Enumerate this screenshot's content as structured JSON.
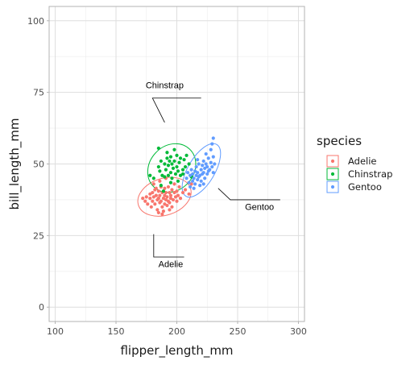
{
  "chart_data": {
    "type": "scatter",
    "xlabel": "flipper_length_mm",
    "ylabel": "bill_length_mm",
    "xlim": [
      95,
      305
    ],
    "ylim": [
      -5,
      105
    ],
    "xticks": [
      100,
      150,
      200,
      250,
      300
    ],
    "yticks": [
      0,
      25,
      50,
      75,
      100
    ],
    "grid": true,
    "legend": {
      "title": "species",
      "position": "right",
      "entries": [
        "Adelie",
        "Chinstrap",
        "Gentoo"
      ]
    },
    "colors": {
      "Adelie": "#F8766D",
      "Chinstrap": "#00BA38",
      "Gentoo": "#619CFF"
    },
    "series": [
      {
        "name": "Adelie",
        "points": [
          [
            172,
            38
          ],
          [
            174,
            37
          ],
          [
            175,
            38.5
          ],
          [
            176,
            36
          ],
          [
            178,
            38
          ],
          [
            178,
            39.5
          ],
          [
            179,
            35
          ],
          [
            180,
            37
          ],
          [
            180,
            40
          ],
          [
            181,
            38.5
          ],
          [
            182,
            36
          ],
          [
            182,
            41
          ],
          [
            183,
            39
          ],
          [
            184,
            37.5
          ],
          [
            184,
            34
          ],
          [
            185,
            38
          ],
          [
            185,
            40.5
          ],
          [
            186,
            36.5
          ],
          [
            186,
            39
          ],
          [
            187,
            42
          ],
          [
            187,
            37
          ],
          [
            188,
            35
          ],
          [
            188,
            40
          ],
          [
            189,
            38
          ],
          [
            189,
            33.5
          ],
          [
            190,
            39
          ],
          [
            190,
            36
          ],
          [
            190,
            41.5
          ],
          [
            191,
            37.5
          ],
          [
            191,
            40
          ],
          [
            192,
            35.5
          ],
          [
            192,
            38.5
          ],
          [
            193,
            42
          ],
          [
            193,
            37
          ],
          [
            194,
            40
          ],
          [
            194,
            36.5
          ],
          [
            195,
            39
          ],
          [
            195,
            38
          ],
          [
            196,
            41
          ],
          [
            196,
            35
          ],
          [
            197,
            37.5
          ],
          [
            198,
            40
          ],
          [
            198,
            43
          ],
          [
            199,
            38.5
          ],
          [
            200,
            37
          ],
          [
            200,
            40.5
          ],
          [
            201,
            39
          ],
          [
            202,
            42
          ],
          [
            203,
            38
          ],
          [
            205,
            40
          ],
          [
            207,
            41
          ],
          [
            210,
            39.5
          ],
          [
            212,
            43
          ],
          [
            181,
            43
          ],
          [
            186,
            44
          ],
          [
            191,
            45
          ],
          [
            185,
            33
          ],
          [
            188,
            32.5
          ],
          [
            194,
            34
          ],
          [
            183,
            41.5
          ]
        ]
      },
      {
        "name": "Chinstrap",
        "points": [
          [
            178,
            46
          ],
          [
            181,
            45
          ],
          [
            185,
            49
          ],
          [
            186,
            47.5
          ],
          [
            187,
            51
          ],
          [
            188,
            46
          ],
          [
            190,
            50
          ],
          [
            190,
            45.5
          ],
          [
            191,
            48
          ],
          [
            192,
            52
          ],
          [
            193,
            49.5
          ],
          [
            193,
            46
          ],
          [
            194,
            51
          ],
          [
            195,
            47
          ],
          [
            195,
            52.5
          ],
          [
            196,
            50
          ],
          [
            196,
            45
          ],
          [
            197,
            48.5
          ],
          [
            198,
            51
          ],
          [
            199,
            46.5
          ],
          [
            200,
            49
          ],
          [
            200,
            53
          ],
          [
            201,
            47.5
          ],
          [
            202,
            50.5
          ],
          [
            203,
            46
          ],
          [
            203,
            52
          ],
          [
            205,
            48
          ],
          [
            206,
            51.5
          ],
          [
            207,
            49
          ],
          [
            210,
            50
          ],
          [
            212,
            45.5
          ],
          [
            187,
            42.5
          ],
          [
            192,
            54
          ],
          [
            198,
            55
          ],
          [
            189,
            40.5
          ],
          [
            201,
            44
          ],
          [
            195,
            43.5
          ],
          [
            205,
            46.5
          ],
          [
            185,
            55.5
          ],
          [
            208,
            53
          ]
        ]
      },
      {
        "name": "Gentoo",
        "points": [
          [
            208,
            45
          ],
          [
            209,
            47
          ],
          [
            210,
            43.5
          ],
          [
            211,
            46
          ],
          [
            212,
            48
          ],
          [
            213,
            44
          ],
          [
            213,
            46.5
          ],
          [
            214,
            45
          ],
          [
            215,
            47.5
          ],
          [
            215,
            43
          ],
          [
            216,
            46
          ],
          [
            216,
            49
          ],
          [
            217,
            44.5
          ],
          [
            217,
            47
          ],
          [
            218,
            45.5
          ],
          [
            218,
            50
          ],
          [
            219,
            46
          ],
          [
            220,
            48
          ],
          [
            220,
            44
          ],
          [
            221,
            49.5
          ],
          [
            221,
            46.5
          ],
          [
            222,
            47
          ],
          [
            222,
            51
          ],
          [
            223,
            45
          ],
          [
            223,
            48.5
          ],
          [
            224,
            50
          ],
          [
            225,
            46.5
          ],
          [
            225,
            49
          ],
          [
            226,
            47.5
          ],
          [
            226,
            52
          ],
          [
            227,
            48
          ],
          [
            228,
            50.5
          ],
          [
            229,
            49
          ],
          [
            230,
            47
          ],
          [
            230,
            52.5
          ],
          [
            231,
            50
          ],
          [
            219,
            42.5
          ],
          [
            214,
            41.5
          ],
          [
            211,
            42
          ],
          [
            228,
            55
          ],
          [
            229,
            57
          ],
          [
            230,
            59
          ],
          [
            224,
            53.5
          ],
          [
            217,
            51.5
          ],
          [
            222,
            43
          ]
        ]
      }
    ],
    "annotations": [
      "Chinstrap",
      "Gentoo",
      "Adelie"
    ]
  }
}
